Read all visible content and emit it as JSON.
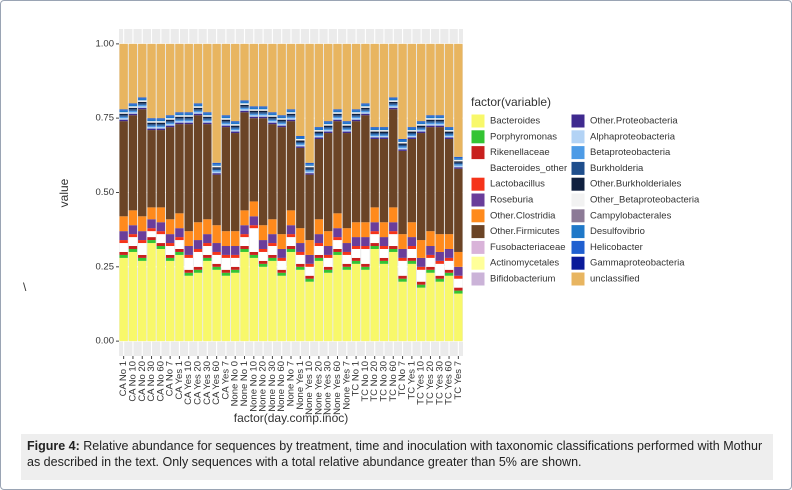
{
  "chart_data": {
    "type": "stacked_bar",
    "ylabel": "value",
    "xlabel": "factor(day.comp.inoc)",
    "legend_title": "factor(variable)",
    "categories": [
      "CA No 1",
      "CA No 10",
      "CA No 20",
      "CA No 30",
      "CA No 60",
      "CA No 7",
      "CA Yes 1",
      "CA Yes 10",
      "CA Yes 20",
      "CA Yes 30",
      "CA Yes 60",
      "CA Yes 7",
      "None No 0",
      "None No 1",
      "None No 10",
      "None No 20",
      "None No 30",
      "None No 60",
      "None No 7",
      "None Yes 1",
      "None Yes 10",
      "None Yes 20",
      "None Yes 30",
      "None Yes 60",
      "None Yes 7",
      "TC No 1",
      "TC No 10",
      "TC No 20",
      "TC No 30",
      "TC No 60",
      "TC No 7",
      "TC Yes 1",
      "TC Yes 10",
      "TC Yes 20",
      "TC Yes 30",
      "TC Yes 60",
      "TC Yes 7"
    ],
    "ylim": [
      -0.05,
      1.05
    ],
    "yticks": [
      {
        "value": 0,
        "label": "0.00"
      },
      {
        "value": 0.25,
        "label": "0.25"
      },
      {
        "value": 0.5,
        "label": "0.50"
      },
      {
        "value": 0.75,
        "label": "0.75"
      },
      {
        "value": 1,
        "label": "1.00"
      }
    ],
    "grid": true,
    "series": [
      {
        "name": "Bacteroides",
        "color": "#f8f86a",
        "values": [
          0.28,
          0.3,
          0.27,
          0.33,
          0.31,
          0.27,
          0.29,
          0.22,
          0.23,
          0.27,
          0.24,
          0.22,
          0.23,
          0.3,
          0.28,
          0.25,
          0.27,
          0.22,
          0.3,
          0.24,
          0.2,
          0.27,
          0.23,
          0.29,
          0.24,
          0.26,
          0.24,
          0.31,
          0.26,
          0.3,
          0.2,
          0.26,
          0.18,
          0.23,
          0.2,
          0.22,
          0.16
        ]
      },
      {
        "name": "Porphyromonas",
        "color": "#33c433",
        "values": [
          0.01,
          0.01,
          0.01,
          0.01,
          0.01,
          0.01,
          0.01,
          0.01,
          0.01,
          0.01,
          0.01,
          0.01,
          0.01,
          0.01,
          0.01,
          0.01,
          0.01,
          0.01,
          0.01,
          0.01,
          0.01,
          0.01,
          0.01,
          0.01,
          0.01,
          0.01,
          0.01,
          0.01,
          0.01,
          0.01,
          0.01,
          0.01,
          0.01,
          0.01,
          0.01,
          0.01,
          0.01
        ]
      },
      {
        "name": "Rikenellaceae",
        "color": "#c8201e",
        "values": [
          0.01,
          0.01,
          0.01,
          0.01,
          0.01,
          0.01,
          0.01,
          0.01,
          0.01,
          0.01,
          0.01,
          0.01,
          0.01,
          0.01,
          0.01,
          0.01,
          0.01,
          0.01,
          0.01,
          0.01,
          0.01,
          0.01,
          0.01,
          0.01,
          0.01,
          0.01,
          0.01,
          0.01,
          0.01,
          0.01,
          0.01,
          0.01,
          0.01,
          0.01,
          0.01,
          0.01,
          0.01
        ]
      },
      {
        "name": "Bacteroides_other",
        "color": "#ffffff",
        "values": [
          0.03,
          0.03,
          0.04,
          0.02,
          0.03,
          0.03,
          0.03,
          0.04,
          0.05,
          0.03,
          0.03,
          0.04,
          0.03,
          0.03,
          0.08,
          0.03,
          0.03,
          0.03,
          0.03,
          0.03,
          0.03,
          0.03,
          0.03,
          0.03,
          0.03,
          0.03,
          0.05,
          0.03,
          0.03,
          0.04,
          0.05,
          0.03,
          0.04,
          0.03,
          0.04,
          0.03,
          0.03
        ]
      },
      {
        "name": "Lactobacillus",
        "color": "#f5331a",
        "values": [
          0.01,
          0.01,
          0.01,
          0.01,
          0.01,
          0.01,
          0.01,
          0.01,
          0.01,
          0.01,
          0.01,
          0.01,
          0.01,
          0.01,
          0.01,
          0.01,
          0.01,
          0.01,
          0.01,
          0.01,
          0.01,
          0.01,
          0.01,
          0.01,
          0.01,
          0.01,
          0.01,
          0.01,
          0.01,
          0.01,
          0.01,
          0.01,
          0.01,
          0.01,
          0.01,
          0.01,
          0.01
        ]
      },
      {
        "name": "Roseburia",
        "color": "#6a3d9a",
        "values": [
          0.03,
          0.03,
          0.03,
          0.03,
          0.03,
          0.03,
          0.03,
          0.03,
          0.03,
          0.03,
          0.03,
          0.03,
          0.03,
          0.03,
          0.03,
          0.03,
          0.03,
          0.03,
          0.03,
          0.03,
          0.03,
          0.03,
          0.03,
          0.03,
          0.03,
          0.03,
          0.03,
          0.03,
          0.03,
          0.03,
          0.03,
          0.03,
          0.03,
          0.03,
          0.03,
          0.03,
          0.03
        ]
      },
      {
        "name": "Other.Clostridia",
        "color": "#ff8a1c",
        "values": [
          0.05,
          0.05,
          0.05,
          0.04,
          0.05,
          0.05,
          0.05,
          0.05,
          0.06,
          0.05,
          0.06,
          0.05,
          0.05,
          0.05,
          0.05,
          0.05,
          0.05,
          0.05,
          0.05,
          0.05,
          0.05,
          0.05,
          0.05,
          0.05,
          0.05,
          0.05,
          0.05,
          0.05,
          0.05,
          0.05,
          0.05,
          0.05,
          0.06,
          0.05,
          0.06,
          0.05,
          0.05
        ]
      },
      {
        "name": "Other.Firmicutes",
        "color": "#6b4426",
        "values": [
          0.32,
          0.32,
          0.36,
          0.26,
          0.26,
          0.31,
          0.3,
          0.36,
          0.36,
          0.32,
          0.17,
          0.35,
          0.33,
          0.33,
          0.28,
          0.36,
          0.32,
          0.36,
          0.3,
          0.27,
          0.22,
          0.27,
          0.33,
          0.31,
          0.32,
          0.34,
          0.36,
          0.23,
          0.28,
          0.33,
          0.28,
          0.28,
          0.36,
          0.35,
          0.36,
          0.32,
          0.28
        ]
      },
      {
        "name": "Fusobacteriaceae",
        "color": "#d9b3d9",
        "values": [
          0,
          0,
          0,
          0,
          0,
          0,
          0,
          0,
          0,
          0,
          0,
          0,
          0,
          0,
          0,
          0,
          0,
          0,
          0,
          0,
          0,
          0,
          0,
          0,
          0,
          0,
          0,
          0,
          0,
          0,
          0,
          0,
          0,
          0,
          0,
          0,
          0
        ]
      },
      {
        "name": "Actinomycetales",
        "color": "#ffff99",
        "values": [
          0,
          0,
          0,
          0,
          0,
          0,
          0,
          0,
          0,
          0,
          0,
          0,
          0,
          0,
          0,
          0,
          0,
          0,
          0,
          0,
          0,
          0,
          0,
          0,
          0,
          0,
          0,
          0,
          0,
          0,
          0,
          0,
          0,
          0,
          0,
          0,
          0
        ]
      },
      {
        "name": "Bifidobacterium",
        "color": "#cbb3d8",
        "values": [
          0,
          0,
          0,
          0,
          0,
          0,
          0,
          0,
          0,
          0,
          0,
          0,
          0,
          0,
          0,
          0,
          0,
          0,
          0,
          0,
          0,
          0,
          0,
          0,
          0,
          0,
          0,
          0,
          0,
          0,
          0,
          0,
          0,
          0,
          0,
          0,
          0
        ]
      },
      {
        "name": "Other.Proteobacteria",
        "color": "#3f2a8f",
        "values": [
          0.005,
          0.005,
          0.005,
          0.005,
          0.005,
          0.005,
          0.005,
          0.005,
          0.005,
          0.005,
          0.005,
          0.005,
          0.005,
          0.005,
          0.005,
          0.005,
          0.005,
          0.005,
          0.005,
          0.005,
          0.005,
          0.005,
          0.005,
          0.005,
          0.005,
          0.005,
          0.005,
          0.005,
          0.005,
          0.005,
          0.005,
          0.005,
          0.005,
          0.005,
          0.005,
          0.005,
          0.005
        ]
      },
      {
        "name": "Alphaproteobacteria",
        "color": "#b3d3f5",
        "values": [
          0.005,
          0.005,
          0.005,
          0.005,
          0.005,
          0.005,
          0.005,
          0.005,
          0.005,
          0.005,
          0.005,
          0.005,
          0.005,
          0.005,
          0.005,
          0.005,
          0.005,
          0.005,
          0.005,
          0.005,
          0.005,
          0.005,
          0.005,
          0.005,
          0.005,
          0.005,
          0.005,
          0.005,
          0.005,
          0.005,
          0.005,
          0.005,
          0.005,
          0.005,
          0.005,
          0.005,
          0.005
        ]
      },
      {
        "name": "Betaproteobacteria",
        "color": "#4d9be6",
        "values": [
          0.005,
          0.005,
          0.005,
          0.005,
          0.005,
          0.005,
          0.005,
          0.005,
          0.005,
          0.005,
          0.005,
          0.005,
          0.005,
          0.005,
          0.005,
          0.005,
          0.005,
          0.005,
          0.005,
          0.005,
          0.005,
          0.005,
          0.005,
          0.005,
          0.005,
          0.005,
          0.005,
          0.005,
          0.005,
          0.005,
          0.005,
          0.005,
          0.005,
          0.005,
          0.005,
          0.005,
          0.005
        ]
      },
      {
        "name": "Burkholderia",
        "color": "#1f4e8c",
        "values": [
          0.005,
          0.005,
          0.005,
          0.005,
          0.005,
          0.005,
          0.005,
          0.005,
          0.005,
          0.005,
          0.005,
          0.005,
          0.005,
          0.005,
          0.005,
          0.005,
          0.005,
          0.005,
          0.005,
          0.005,
          0.005,
          0.005,
          0.005,
          0.005,
          0.005,
          0.005,
          0.005,
          0.005,
          0.005,
          0.005,
          0.005,
          0.005,
          0.005,
          0.005,
          0.005,
          0.005,
          0.005
        ]
      },
      {
        "name": "Other.Burkholderiales",
        "color": "#10203f",
        "values": [
          0.005,
          0.005,
          0.005,
          0.005,
          0.005,
          0.005,
          0.005,
          0.005,
          0.005,
          0.005,
          0.005,
          0.005,
          0.005,
          0.005,
          0.005,
          0.005,
          0.005,
          0.005,
          0.005,
          0.005,
          0.005,
          0.005,
          0.005,
          0.005,
          0.005,
          0.005,
          0.005,
          0.005,
          0.005,
          0.005,
          0.005,
          0.005,
          0.005,
          0.005,
          0.005,
          0.005,
          0.005
        ]
      },
      {
        "name": "Other_Betaproteobacteria",
        "color": "#f2f2f2",
        "values": [
          0.005,
          0.005,
          0.005,
          0.005,
          0.005,
          0.005,
          0.005,
          0.005,
          0.005,
          0.005,
          0.005,
          0.005,
          0.005,
          0.005,
          0.005,
          0.005,
          0.005,
          0.005,
          0.005,
          0.005,
          0.005,
          0.005,
          0.005,
          0.005,
          0.005,
          0.005,
          0.005,
          0.005,
          0.005,
          0.005,
          0.005,
          0.005,
          0.005,
          0.005,
          0.005,
          0.005,
          0.005
        ]
      },
      {
        "name": "Campylobacterales",
        "color": "#8c7a96",
        "values": [
          0,
          0,
          0,
          0,
          0,
          0,
          0,
          0,
          0,
          0,
          0,
          0,
          0,
          0,
          0,
          0,
          0,
          0,
          0,
          0,
          0,
          0,
          0,
          0,
          0,
          0,
          0,
          0,
          0,
          0,
          0,
          0,
          0,
          0,
          0,
          0,
          0
        ]
      },
      {
        "name": "Desulfovibrio",
        "color": "#1f78c8",
        "values": [
          0.005,
          0.005,
          0.005,
          0.005,
          0.005,
          0.005,
          0.005,
          0.005,
          0.005,
          0.005,
          0.005,
          0.005,
          0.005,
          0.005,
          0.005,
          0.005,
          0.005,
          0.005,
          0.005,
          0.005,
          0.005,
          0.005,
          0.005,
          0.005,
          0.005,
          0.005,
          0.005,
          0.005,
          0.005,
          0.005,
          0.005,
          0.005,
          0.005,
          0.005,
          0.005,
          0.005,
          0.005
        ]
      },
      {
        "name": "Helicobacter",
        "color": "#1f5fd0",
        "values": [
          0.005,
          0.005,
          0.005,
          0.005,
          0.005,
          0.005,
          0.005,
          0.005,
          0.005,
          0.005,
          0.005,
          0.005,
          0.005,
          0.005,
          0.005,
          0.005,
          0.005,
          0.005,
          0.005,
          0.005,
          0.005,
          0.005,
          0.005,
          0.005,
          0.005,
          0.005,
          0.005,
          0.005,
          0.005,
          0.005,
          0.005,
          0.005,
          0.005,
          0.005,
          0.005,
          0.005,
          0.005
        ]
      },
      {
        "name": "Gammaproteobacteria",
        "color": "#0a1a99",
        "values": [
          0,
          0,
          0,
          0,
          0,
          0,
          0,
          0,
          0,
          0,
          0,
          0,
          0,
          0,
          0,
          0,
          0,
          0,
          0,
          0,
          0,
          0,
          0,
          0,
          0,
          0,
          0,
          0,
          0,
          0,
          0,
          0,
          0,
          0,
          0,
          0,
          0
        ]
      },
      {
        "name": "unclassified",
        "color": "#e8b560",
        "values": [
          0.22,
          0.2,
          0.18,
          0.25,
          0.25,
          0.24,
          0.23,
          0.23,
          0.2,
          0.23,
          0.4,
          0.24,
          0.26,
          0.19,
          0.21,
          0.21,
          0.23,
          0.24,
          0.22,
          0.31,
          0.4,
          0.28,
          0.26,
          0.22,
          0.26,
          0.22,
          0.2,
          0.28,
          0.28,
          0.18,
          0.32,
          0.28,
          0.26,
          0.24,
          0.24,
          0.28,
          0.38
        ]
      }
    ]
  },
  "stray_text": "\\",
  "caption": {
    "label": "Figure 4:",
    "text": "Relative abundance for sequences by treatment, time and inoculation with taxonomic classifications performed with Mothur as described in the text. Only sequences with a total relative abundance greater than 5% are shown."
  }
}
